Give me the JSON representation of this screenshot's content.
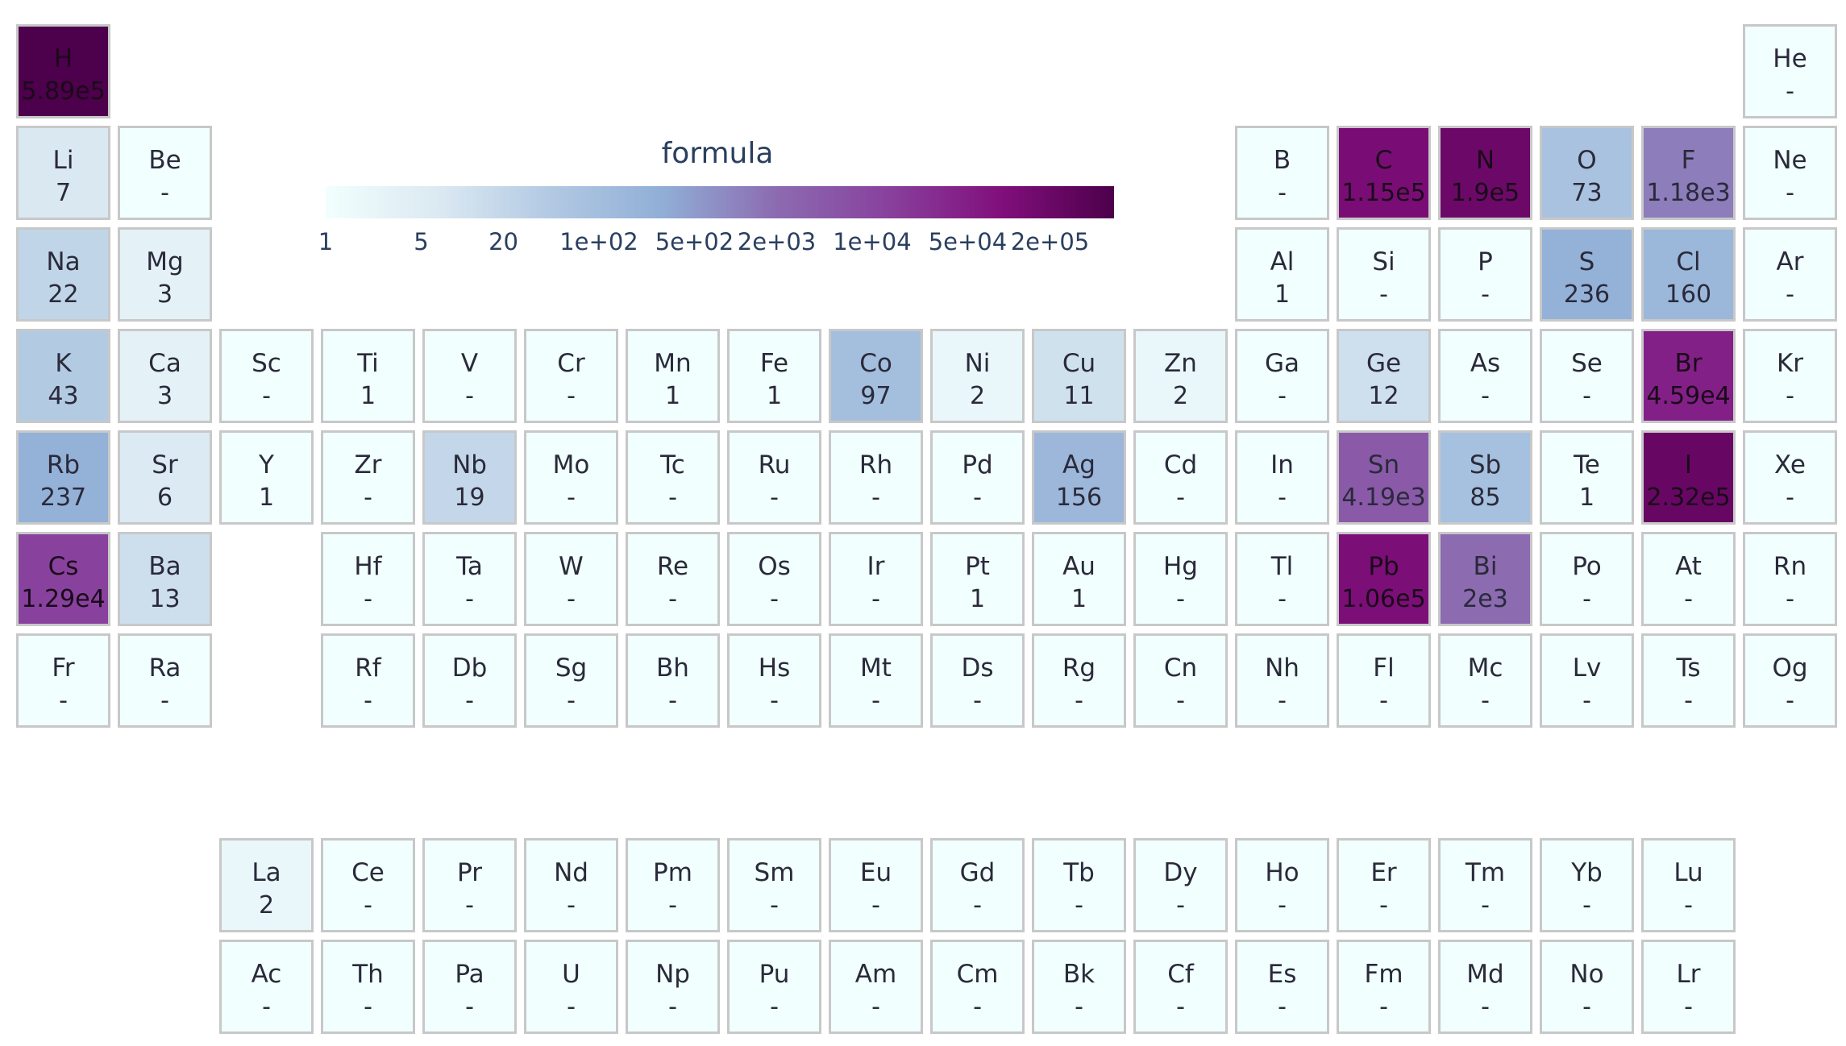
{
  "chart_data": {
    "type": "heatmap",
    "colorbar": {
      "title": "formula",
      "scale": "log",
      "range": [
        1,
        589000
      ],
      "colors": [
        "#f1fffe",
        "#dbe9f2",
        "#b2c9e3",
        "#90aed6",
        "#8c6bb1",
        "#88419d",
        "#810f7c",
        "#4d004b"
      ],
      "tick_labels": [
        "1",
        "5",
        "20",
        "1e+02",
        "5e+02",
        "2e+03",
        "1e+04",
        "5e+04",
        "2e+05"
      ],
      "tick_values": [
        1,
        5,
        20,
        100,
        500,
        2000,
        10000,
        50000,
        200000
      ]
    },
    "elements": [
      {
        "symbol": "H",
        "label": "5.89e5",
        "value": 589000
      },
      {
        "symbol": "He",
        "label": "-",
        "value": null
      },
      {
        "symbol": "Li",
        "label": "7",
        "value": 7
      },
      {
        "symbol": "Be",
        "label": "-",
        "value": null
      },
      {
        "symbol": "B",
        "label": "-",
        "value": null
      },
      {
        "symbol": "C",
        "label": "1.15e5",
        "value": 115000
      },
      {
        "symbol": "N",
        "label": "1.9e5",
        "value": 190000
      },
      {
        "symbol": "O",
        "label": "73",
        "value": 73
      },
      {
        "symbol": "F",
        "label": "1.18e3",
        "value": 1180
      },
      {
        "symbol": "Ne",
        "label": "-",
        "value": null
      },
      {
        "symbol": "Na",
        "label": "22",
        "value": 22
      },
      {
        "symbol": "Mg",
        "label": "3",
        "value": 3
      },
      {
        "symbol": "Al",
        "label": "1",
        "value": 1
      },
      {
        "symbol": "Si",
        "label": "-",
        "value": null
      },
      {
        "symbol": "P",
        "label": "-",
        "value": null
      },
      {
        "symbol": "S",
        "label": "236",
        "value": 236
      },
      {
        "symbol": "Cl",
        "label": "160",
        "value": 160
      },
      {
        "symbol": "Ar",
        "label": "-",
        "value": null
      },
      {
        "symbol": "K",
        "label": "43",
        "value": 43
      },
      {
        "symbol": "Ca",
        "label": "3",
        "value": 3
      },
      {
        "symbol": "Sc",
        "label": "-",
        "value": null
      },
      {
        "symbol": "Ti",
        "label": "1",
        "value": 1
      },
      {
        "symbol": "V",
        "label": "-",
        "value": null
      },
      {
        "symbol": "Cr",
        "label": "-",
        "value": null
      },
      {
        "symbol": "Mn",
        "label": "1",
        "value": 1
      },
      {
        "symbol": "Fe",
        "label": "1",
        "value": 1
      },
      {
        "symbol": "Co",
        "label": "97",
        "value": 97
      },
      {
        "symbol": "Ni",
        "label": "2",
        "value": 2
      },
      {
        "symbol": "Cu",
        "label": "11",
        "value": 11
      },
      {
        "symbol": "Zn",
        "label": "2",
        "value": 2
      },
      {
        "symbol": "Ga",
        "label": "-",
        "value": null
      },
      {
        "symbol": "Ge",
        "label": "12",
        "value": 12
      },
      {
        "symbol": "As",
        "label": "-",
        "value": null
      },
      {
        "symbol": "Se",
        "label": "-",
        "value": null
      },
      {
        "symbol": "Br",
        "label": "4.59e4",
        "value": 45900
      },
      {
        "symbol": "Kr",
        "label": "-",
        "value": null
      },
      {
        "symbol": "Rb",
        "label": "237",
        "value": 237
      },
      {
        "symbol": "Sr",
        "label": "6",
        "value": 6
      },
      {
        "symbol": "Y",
        "label": "1",
        "value": 1
      },
      {
        "symbol": "Zr",
        "label": "-",
        "value": null
      },
      {
        "symbol": "Nb",
        "label": "19",
        "value": 19
      },
      {
        "symbol": "Mo",
        "label": "-",
        "value": null
      },
      {
        "symbol": "Tc",
        "label": "-",
        "value": null
      },
      {
        "symbol": "Ru",
        "label": "-",
        "value": null
      },
      {
        "symbol": "Rh",
        "label": "-",
        "value": null
      },
      {
        "symbol": "Pd",
        "label": "-",
        "value": null
      },
      {
        "symbol": "Ag",
        "label": "156",
        "value": 156
      },
      {
        "symbol": "Cd",
        "label": "-",
        "value": null
      },
      {
        "symbol": "In",
        "label": "-",
        "value": null
      },
      {
        "symbol": "Sn",
        "label": "4.19e3",
        "value": 4190
      },
      {
        "symbol": "Sb",
        "label": "85",
        "value": 85
      },
      {
        "symbol": "Te",
        "label": "1",
        "value": 1
      },
      {
        "symbol": "I",
        "label": "2.32e5",
        "value": 232000
      },
      {
        "symbol": "Xe",
        "label": "-",
        "value": null
      },
      {
        "symbol": "Cs",
        "label": "1.29e4",
        "value": 12900
      },
      {
        "symbol": "Ba",
        "label": "13",
        "value": 13
      },
      {
        "symbol": "La",
        "label": "2",
        "value": 2
      },
      {
        "symbol": "Ce",
        "label": "-",
        "value": null
      },
      {
        "symbol": "Pr",
        "label": "-",
        "value": null
      },
      {
        "symbol": "Nd",
        "label": "-",
        "value": null
      },
      {
        "symbol": "Pm",
        "label": "-",
        "value": null
      },
      {
        "symbol": "Sm",
        "label": "-",
        "value": null
      },
      {
        "symbol": "Eu",
        "label": "-",
        "value": null
      },
      {
        "symbol": "Gd",
        "label": "-",
        "value": null
      },
      {
        "symbol": "Tb",
        "label": "-",
        "value": null
      },
      {
        "symbol": "Dy",
        "label": "-",
        "value": null
      },
      {
        "symbol": "Ho",
        "label": "-",
        "value": null
      },
      {
        "symbol": "Er",
        "label": "-",
        "value": null
      },
      {
        "symbol": "Tm",
        "label": "-",
        "value": null
      },
      {
        "symbol": "Yb",
        "label": "-",
        "value": null
      },
      {
        "symbol": "Lu",
        "label": "-",
        "value": null
      },
      {
        "symbol": "Hf",
        "label": "-",
        "value": null
      },
      {
        "symbol": "Ta",
        "label": "-",
        "value": null
      },
      {
        "symbol": "W",
        "label": "-",
        "value": null
      },
      {
        "symbol": "Re",
        "label": "-",
        "value": null
      },
      {
        "symbol": "Os",
        "label": "-",
        "value": null
      },
      {
        "symbol": "Ir",
        "label": "-",
        "value": null
      },
      {
        "symbol": "Pt",
        "label": "1",
        "value": 1
      },
      {
        "symbol": "Au",
        "label": "1",
        "value": 1
      },
      {
        "symbol": "Hg",
        "label": "-",
        "value": null
      },
      {
        "symbol": "Tl",
        "label": "-",
        "value": null
      },
      {
        "symbol": "Pb",
        "label": "1.06e5",
        "value": 106000
      },
      {
        "symbol": "Bi",
        "label": "2e3",
        "value": 2000
      },
      {
        "symbol": "Po",
        "label": "-",
        "value": null
      },
      {
        "symbol": "At",
        "label": "-",
        "value": null
      },
      {
        "symbol": "Rn",
        "label": "-",
        "value": null
      },
      {
        "symbol": "Fr",
        "label": "-",
        "value": null
      },
      {
        "symbol": "Ra",
        "label": "-",
        "value": null
      },
      {
        "symbol": "Ac",
        "label": "-",
        "value": null
      },
      {
        "symbol": "Th",
        "label": "-",
        "value": null
      },
      {
        "symbol": "Pa",
        "label": "-",
        "value": null
      },
      {
        "symbol": "U",
        "label": "-",
        "value": null
      },
      {
        "symbol": "Np",
        "label": "-",
        "value": null
      },
      {
        "symbol": "Pu",
        "label": "-",
        "value": null
      },
      {
        "symbol": "Am",
        "label": "-",
        "value": null
      },
      {
        "symbol": "Cm",
        "label": "-",
        "value": null
      },
      {
        "symbol": "Bk",
        "label": "-",
        "value": null
      },
      {
        "symbol": "Cf",
        "label": "-",
        "value": null
      },
      {
        "symbol": "Es",
        "label": "-",
        "value": null
      },
      {
        "symbol": "Fm",
        "label": "-",
        "value": null
      },
      {
        "symbol": "Md",
        "label": "-",
        "value": null
      },
      {
        "symbol": "No",
        "label": "-",
        "value": null
      },
      {
        "symbol": "Lr",
        "label": "-",
        "value": null
      },
      {
        "symbol": "Rf",
        "label": "-",
        "value": null
      },
      {
        "symbol": "Db",
        "label": "-",
        "value": null
      },
      {
        "symbol": "Sg",
        "label": "-",
        "value": null
      },
      {
        "symbol": "Bh",
        "label": "-",
        "value": null
      },
      {
        "symbol": "Hs",
        "label": "-",
        "value": null
      },
      {
        "symbol": "Mt",
        "label": "-",
        "value": null
      },
      {
        "symbol": "Ds",
        "label": "-",
        "value": null
      },
      {
        "symbol": "Rg",
        "label": "-",
        "value": null
      },
      {
        "symbol": "Cn",
        "label": "-",
        "value": null
      },
      {
        "symbol": "Nh",
        "label": "-",
        "value": null
      },
      {
        "symbol": "Fl",
        "label": "-",
        "value": null
      },
      {
        "symbol": "Mc",
        "label": "-",
        "value": null
      },
      {
        "symbol": "Lv",
        "label": "-",
        "value": null
      },
      {
        "symbol": "Ts",
        "label": "-",
        "value": null
      },
      {
        "symbol": "Og",
        "label": "-",
        "value": null
      }
    ]
  }
}
